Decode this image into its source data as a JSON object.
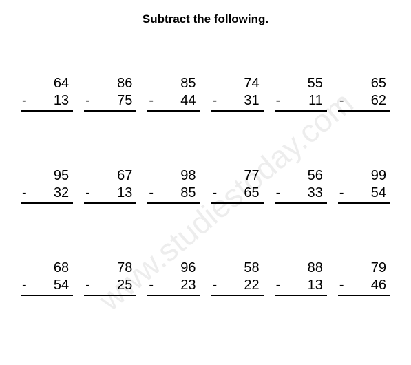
{
  "title": "Subtract the following.",
  "watermark": "www.studiestoday.com",
  "sign": "-",
  "problems": [
    {
      "a": "64",
      "b": "13"
    },
    {
      "a": "86",
      "b": "75"
    },
    {
      "a": "85",
      "b": "44"
    },
    {
      "a": "74",
      "b": "31"
    },
    {
      "a": "55",
      "b": "11"
    },
    {
      "a": "65",
      "b": "62"
    },
    {
      "a": "95",
      "b": "32"
    },
    {
      "a": "67",
      "b": "13"
    },
    {
      "a": "98",
      "b": "85"
    },
    {
      "a": "77",
      "b": "65"
    },
    {
      "a": "56",
      "b": "33"
    },
    {
      "a": "99",
      "b": "54"
    },
    {
      "a": "68",
      "b": "54"
    },
    {
      "a": "78",
      "b": "25"
    },
    {
      "a": "96",
      "b": "23"
    },
    {
      "a": "58",
      "b": "22"
    },
    {
      "a": "88",
      "b": "13"
    },
    {
      "a": "79",
      "b": "46"
    }
  ],
  "style": {
    "background_color": "#ffffff",
    "text_color": "#000000",
    "title_fontsize": 17,
    "problem_fontsize": 20,
    "watermark_color": "rgba(0,0,0,0.07)",
    "watermark_fontsize": 46,
    "rule_color": "#000000",
    "columns": 6,
    "rows": 3
  }
}
